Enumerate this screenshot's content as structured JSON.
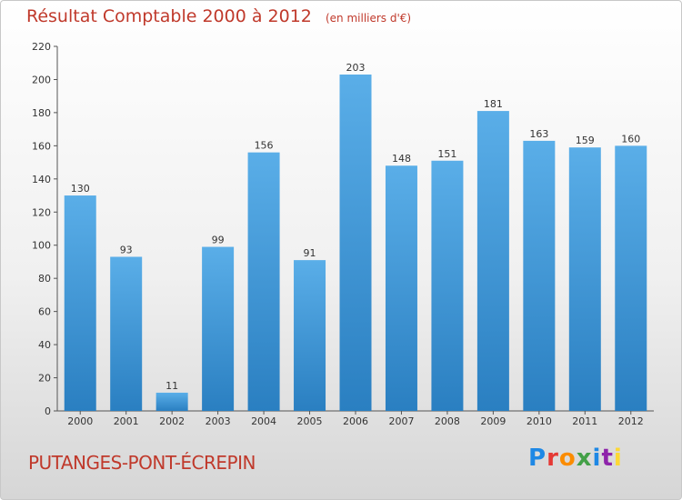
{
  "title": "Résultat Comptable 2000 à 2012",
  "subtitle": "(en milliers d'€)",
  "commune": "PUTANGES-PONT-ÉCREPIN",
  "logo": "Proxiti",
  "colors": {
    "bar_top": "#5aaee8",
    "bar_bottom": "#2a7fc1",
    "title": "#c0392b"
  },
  "chart_data": {
    "type": "bar",
    "title": "Résultat Comptable 2000 à 2012",
    "subtitle": "(en milliers d'€)",
    "categories": [
      "2000",
      "2001",
      "2002",
      "2003",
      "2004",
      "2005",
      "2006",
      "2007",
      "2008",
      "2009",
      "2010",
      "2011",
      "2012"
    ],
    "values": [
      130,
      93,
      11,
      99,
      156,
      91,
      203,
      148,
      151,
      181,
      163,
      159,
      160
    ],
    "ylim": [
      0,
      220
    ],
    "yticks": [
      0,
      20,
      40,
      60,
      80,
      100,
      120,
      140,
      160,
      180,
      200,
      220
    ],
    "grid": false,
    "data_labels": true
  }
}
